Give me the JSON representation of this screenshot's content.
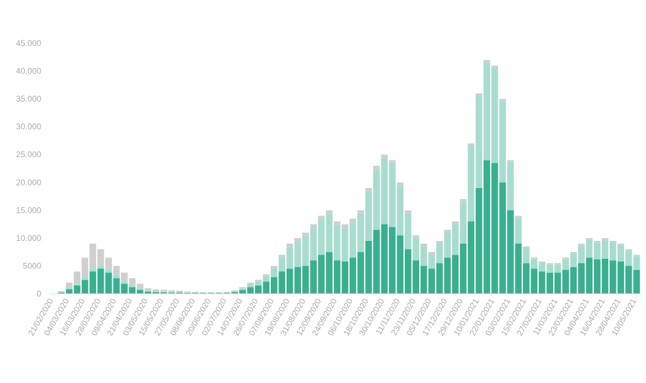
{
  "chart_data": {
    "type": "bar",
    "stacked": true,
    "categories": [
      "21/02/2020",
      null,
      "04/03/2020",
      null,
      "16/03/2020",
      null,
      "28/03/2020",
      null,
      "09/04/2020",
      null,
      "21/04/2020",
      null,
      "03/05/2020",
      null,
      "15/05/2020",
      null,
      "27/05/2020",
      null,
      "08/06/2020",
      null,
      "20/06/2020",
      null,
      "02/07/2020",
      null,
      "14/07/2020",
      null,
      "26/07/2020",
      null,
      "07/08/2020",
      null,
      "19/08/2020",
      null,
      "31/08/2020",
      null,
      "12/09/2020",
      null,
      "24/09/2020",
      null,
      "06/10/2020",
      null,
      "18/10/2020",
      null,
      "30/10/2020",
      null,
      "11/11/2020",
      null,
      "23/11/2020",
      null,
      "05/12/2020",
      null,
      "17/12/2020",
      null,
      "29/12/2020",
      null,
      "10/01/2021",
      null,
      "22/01/2021",
      null,
      "03/02/2021",
      null,
      "15/02/2021",
      null,
      "27/02/2021",
      null,
      "11/03/2021",
      null,
      "23/03/2021",
      null,
      "04/04/2021",
      null,
      "16/04/2021",
      null,
      "28/04/2021",
      null,
      "10/05/2021"
    ],
    "series": [
      {
        "color": "#3aaf8f",
        "values": [
          0,
          200,
          800,
          1500,
          2500,
          4000,
          4500,
          3800,
          2800,
          1800,
          1200,
          700,
          400,
          300,
          250,
          200,
          200,
          150,
          150,
          120,
          120,
          120,
          150,
          300,
          700,
          1200,
          1500,
          2200,
          3000,
          4000,
          4500,
          4800,
          5000,
          6000,
          7000,
          7500,
          6000,
          5800,
          6500,
          7500,
          9500,
          11500,
          12500,
          12000,
          10500,
          8000,
          6000,
          5000,
          4500,
          5500,
          6500,
          7000,
          9000,
          13000,
          19000,
          24000,
          23500,
          20000,
          15000,
          9000,
          5500,
          4500,
          4000,
          3800,
          3800,
          4300,
          4800,
          5500,
          6500,
          6200,
          6300,
          6000,
          5800,
          5000,
          4300
        ]
      },
      {
        "color": "#a8dccf",
        "values": [
          0,
          0,
          200,
          300,
          400,
          500,
          500,
          400,
          400,
          300,
          300,
          200,
          100,
          100,
          100,
          100,
          100,
          50,
          50,
          50,
          50,
          50,
          50,
          100,
          200,
          400,
          600,
          900,
          1500,
          2500,
          3800,
          4500,
          5300,
          5800,
          6300,
          6800,
          6300,
          6000,
          6300,
          6800,
          8800,
          10800,
          11800,
          11300,
          8800,
          6300,
          4000,
          3500,
          2600,
          3600,
          4500,
          5500,
          7500,
          13500,
          16500,
          17500,
          17000,
          14500,
          8600,
          4600,
          2700,
          1700,
          1500,
          1400,
          1400,
          1900,
          2400,
          3200,
          3200,
          3000,
          3400,
          3200,
          2900,
          2700,
          2400
        ]
      },
      {
        "color": "#cfcfcf",
        "values": [
          0,
          300,
          1000,
          2200,
          3600,
          4500,
          3000,
          2300,
          1800,
          1700,
          1300,
          900,
          500,
          400,
          350,
          300,
          250,
          200,
          150,
          130,
          130,
          130,
          150,
          200,
          300,
          400,
          400,
          400,
          500,
          500,
          700,
          700,
          700,
          700,
          700,
          700,
          700,
          700,
          700,
          700,
          700,
          700,
          700,
          700,
          700,
          700,
          500,
          500,
          400,
          400,
          500,
          500,
          500,
          500,
          500,
          500,
          500,
          500,
          400,
          400,
          300,
          300,
          300,
          300,
          300,
          300,
          300,
          300,
          300,
          300,
          300,
          300,
          300,
          300,
          300
        ]
      }
    ],
    "ylim": [
      0,
      45000
    ],
    "yticks": [
      0,
      5000,
      {
        "value": 10000,
        "label": "10.000"
      },
      {
        "value": 15000,
        "label": "15.000"
      },
      {
        "value": 20000,
        "label": "20.000"
      },
      {
        "value": 25000,
        "label": "25.000"
      },
      {
        "value": 30000,
        "label": "30.000"
      },
      {
        "value": 35000,
        "label": "35.000"
      },
      {
        "value": 40000,
        "label": "40.000"
      },
      {
        "value": 45000,
        "label": "45.000"
      }
    ]
  }
}
